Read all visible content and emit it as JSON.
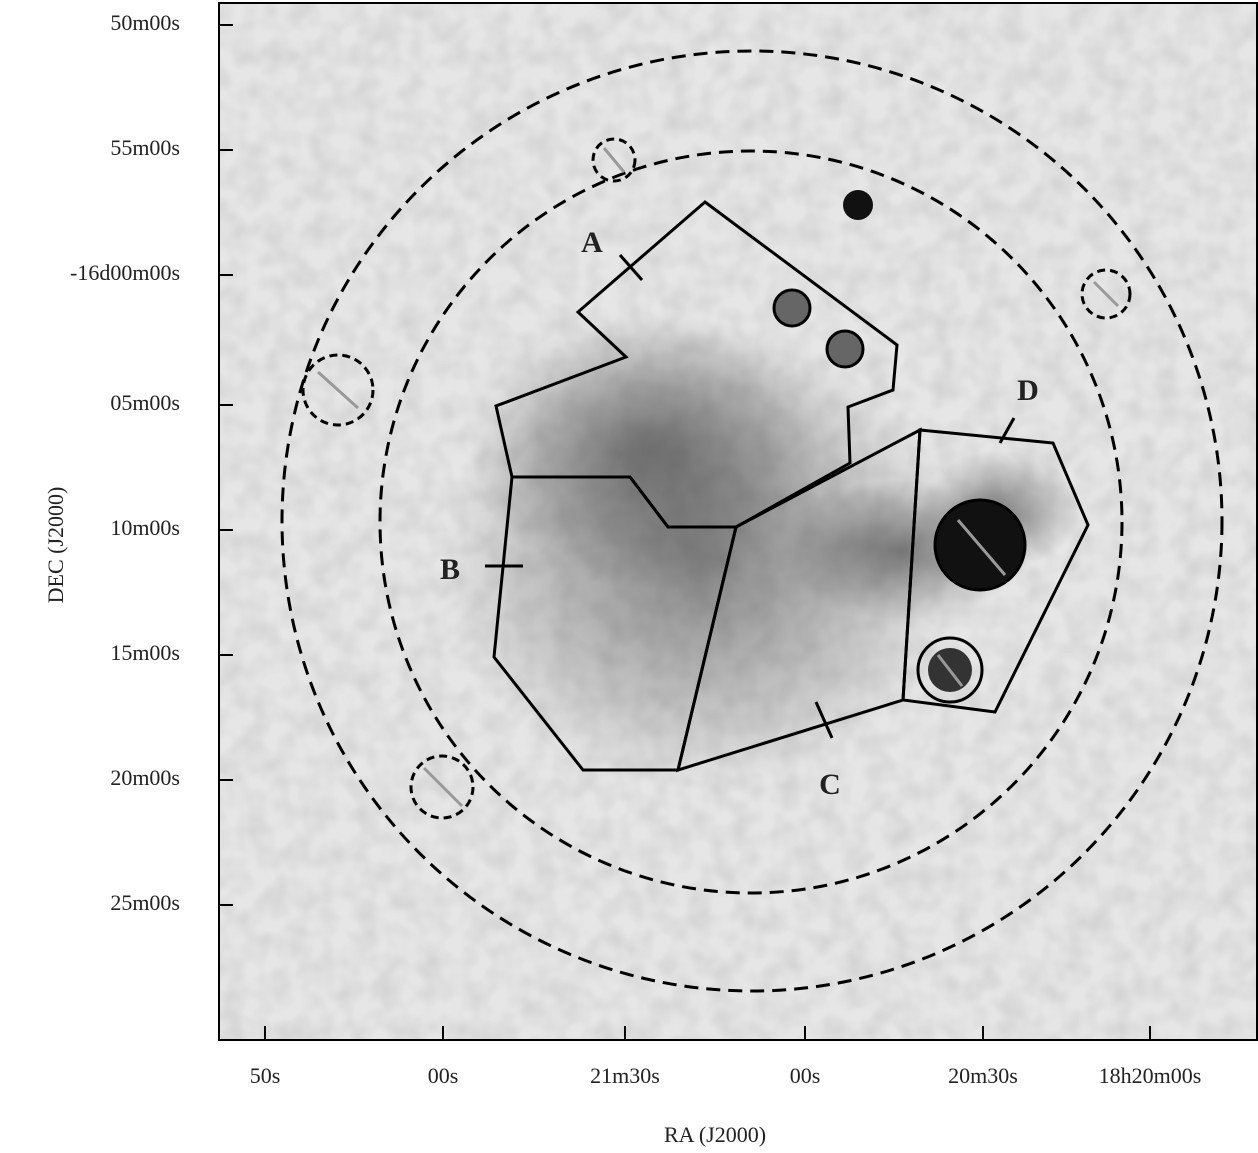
{
  "axes": {
    "y_title": "DEC (J2000)",
    "x_title": "RA (J2000)",
    "y_ticks": [
      "50m00s",
      "55m00s",
      "-16d00m00s",
      "05m00s",
      "10m00s",
      "15m00s",
      "20m00s",
      "25m00s"
    ],
    "x_ticks": [
      "50s",
      "00s",
      "21m30s",
      "00s",
      "20m30s",
      "18h20m00s"
    ]
  },
  "regions": [
    {
      "label": "A"
    },
    {
      "label": "B"
    },
    {
      "label": "C"
    },
    {
      "label": "D"
    }
  ]
}
